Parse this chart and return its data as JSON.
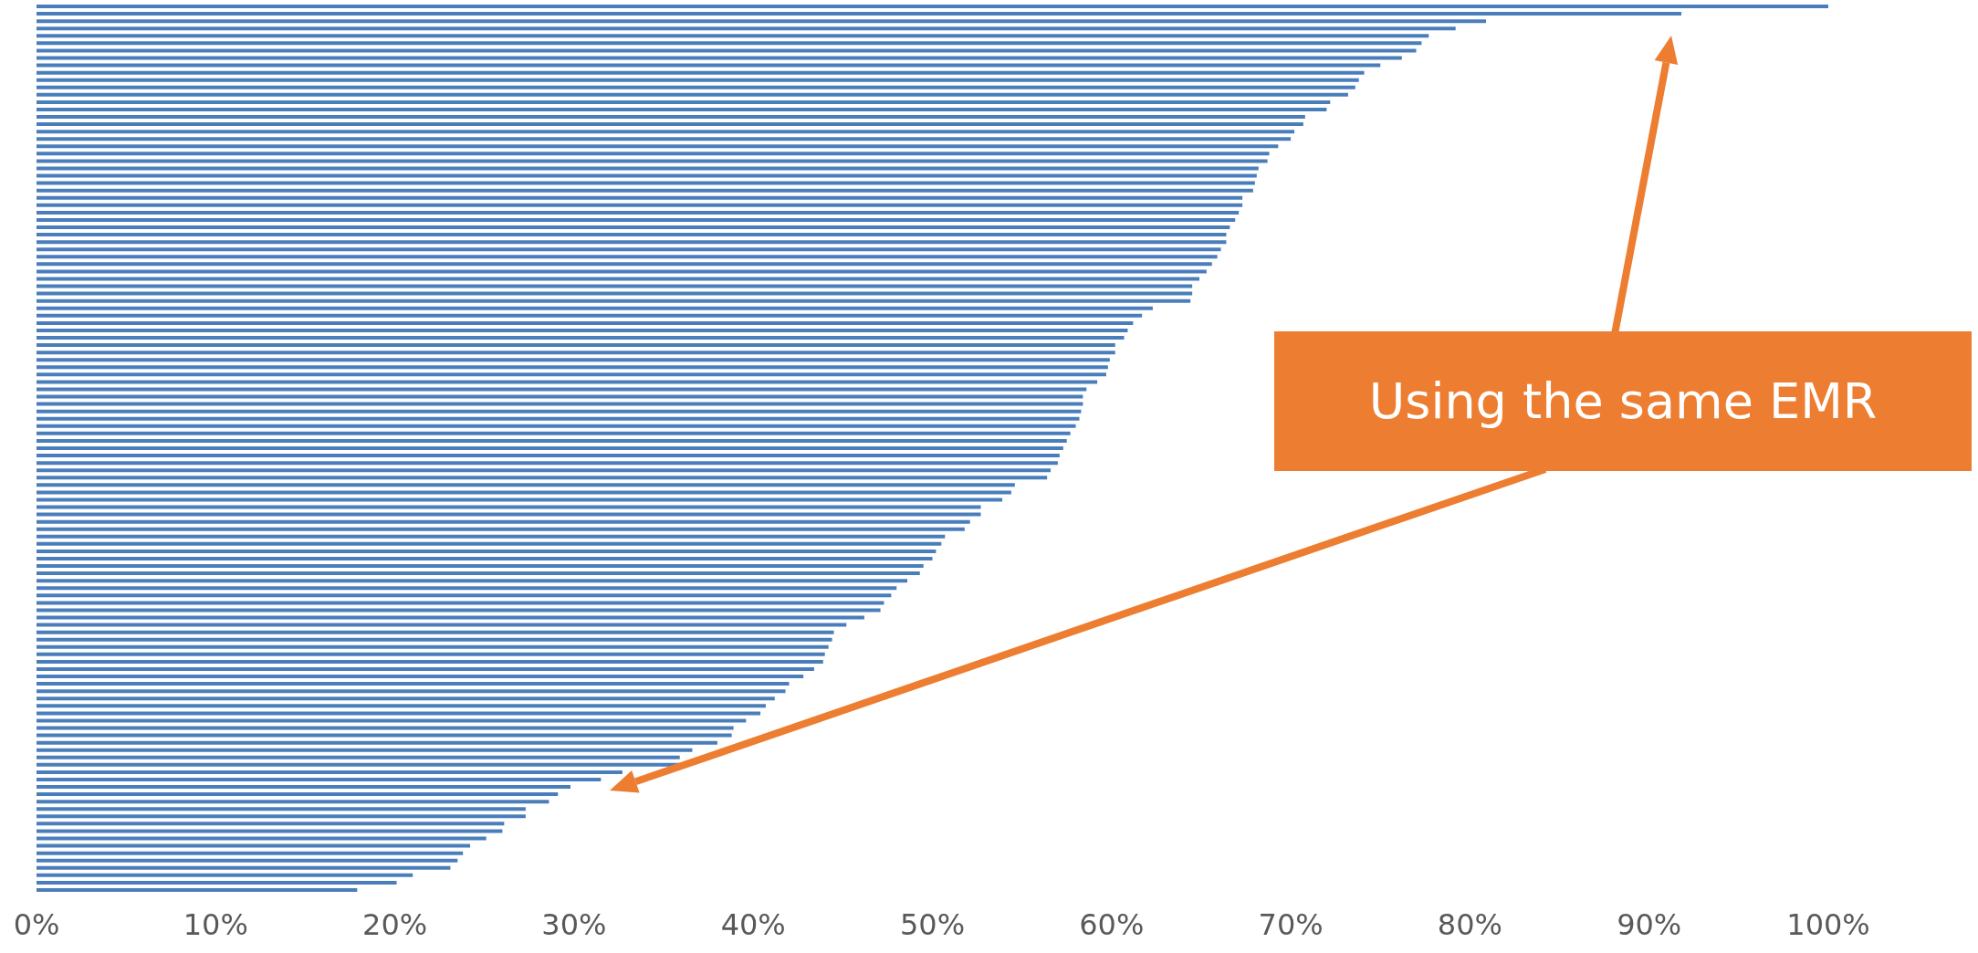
{
  "chart_data": {
    "type": "bar",
    "orientation": "horizontal",
    "categories": [
      null,
      null,
      null,
      null,
      null,
      null,
      null,
      null,
      null,
      null,
      null,
      null,
      null,
      null,
      null,
      null,
      null,
      null,
      null,
      null,
      null,
      null,
      null,
      null,
      null,
      null,
      null,
      null,
      null,
      null,
      null,
      null,
      null,
      null,
      null,
      null,
      null,
      null,
      null,
      null,
      null,
      null,
      null,
      null,
      null,
      null,
      null,
      null,
      null,
      null,
      null,
      null,
      null,
      null,
      null,
      null,
      null,
      null,
      null,
      null,
      null,
      null,
      null,
      null,
      null,
      null,
      null,
      null,
      null,
      null,
      null,
      null,
      null,
      null,
      null,
      null,
      null,
      null,
      null,
      null,
      null,
      null,
      null,
      null,
      null,
      null,
      null,
      null,
      null,
      null,
      null,
      null,
      null,
      null,
      null,
      null,
      null,
      null,
      null,
      null,
      null,
      null,
      null,
      null,
      null,
      null,
      null,
      null,
      null,
      null,
      null,
      null,
      null,
      null,
      null,
      null,
      null,
      null,
      null,
      null,
      null
    ],
    "series": [
      {
        "color": "#4a7ebb",
        "values": [
          100.0,
          91.8,
          80.9,
          79.2,
          77.7,
          77.3,
          77.0,
          76.2,
          75.0,
          74.1,
          73.8,
          73.6,
          73.2,
          72.2,
          72.0,
          70.8,
          70.7,
          70.2,
          70.0,
          69.3,
          68.8,
          68.7,
          68.2,
          68.1,
          68.0,
          67.9,
          67.3,
          67.3,
          67.1,
          66.9,
          66.6,
          66.4,
          66.4,
          66.1,
          65.9,
          65.6,
          65.3,
          64.9,
          64.5,
          64.5,
          64.4,
          62.3,
          61.7,
          61.2,
          60.9,
          60.7,
          60.2,
          60.2,
          59.9,
          59.8,
          59.7,
          59.2,
          58.6,
          58.4,
          58.4,
          58.3,
          58.2,
          58.0,
          57.7,
          57.5,
          57.3,
          57.1,
          57.0,
          56.6,
          56.4,
          54.6,
          54.4,
          53.9,
          52.7,
          52.7,
          52.1,
          51.8,
          50.7,
          50.5,
          50.2,
          50.0,
          49.5,
          49.3,
          48.6,
          48.0,
          47.7,
          47.3,
          47.1,
          46.2,
          45.2,
          44.5,
          44.4,
          44.2,
          44.0,
          43.9,
          43.4,
          42.8,
          42.0,
          41.8,
          41.2,
          40.7,
          40.4,
          39.6,
          38.9,
          38.8,
          38.0,
          36.6,
          35.9,
          35.9,
          32.7,
          31.5,
          29.8,
          29.1,
          28.6,
          27.3,
          27.3,
          26.1,
          26.0,
          25.1,
          24.2,
          23.8,
          23.5,
          23.1,
          21.0,
          20.1,
          17.9
        ]
      }
    ],
    "xlim": [
      0,
      100
    ],
    "xticks": [
      {
        "value": 0,
        "label": "0%"
      },
      {
        "value": 10,
        "label": "10%"
      },
      {
        "value": 20,
        "label": "20%"
      },
      {
        "value": 30,
        "label": "30%"
      },
      {
        "value": 40,
        "label": "40%"
      },
      {
        "value": 50,
        "label": "50%"
      },
      {
        "value": 60,
        "label": "60%"
      },
      {
        "value": 70,
        "label": "70%"
      },
      {
        "value": 80,
        "label": "80%"
      },
      {
        "value": 90,
        "label": "90%"
      },
      {
        "value": 100,
        "label": "100%"
      }
    ],
    "tick_labels": "x",
    "grid": false,
    "annotations": [
      "Using the same EMR"
    ]
  }
}
